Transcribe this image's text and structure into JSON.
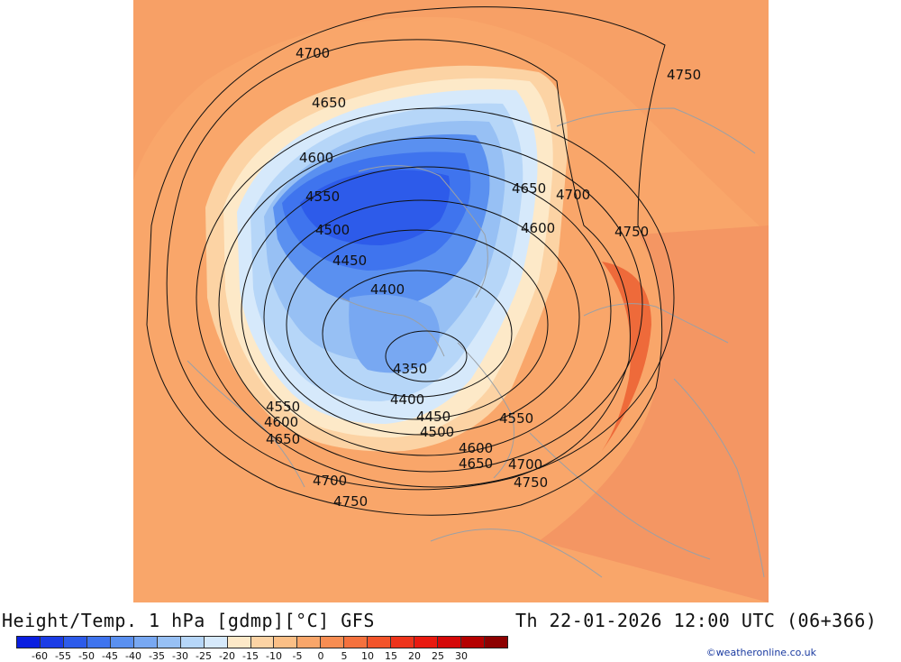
{
  "title": "Height/Temp. 1 hPa [gdmp][°C] GFS",
  "datetime": "Th 22-01-2026 12:00 UTC (06+366)",
  "credit": "©weatheronline.co.uk",
  "colorbar": {
    "colors": [
      "#0a1ee0",
      "#1b3ce6",
      "#2d5bea",
      "#3f74ee",
      "#5a90f0",
      "#78a8f2",
      "#97c0f4",
      "#b6d6f8",
      "#d6e9fb",
      "#fde9c8",
      "#fcd3a4",
      "#fbbf86",
      "#f9a66a",
      "#f78d52",
      "#f4713d",
      "#f2542a",
      "#ee341b",
      "#e91a10",
      "#d50808",
      "#b50000",
      "#8d0000"
    ],
    "ticks": [
      "-60",
      "-55",
      "-50",
      "-45",
      "-40",
      "-35",
      "-30",
      "-25",
      "-20",
      "-15",
      "-10",
      "-5",
      "0",
      "5",
      "10",
      "15",
      "20",
      "25",
      "30"
    ]
  },
  "contour_labels": [
    {
      "text": "4700"
    },
    {
      "text": "4750"
    },
    {
      "text": "4650"
    },
    {
      "text": "4600"
    },
    {
      "text": "4650"
    },
    {
      "text": "4700"
    },
    {
      "text": "4550"
    },
    {
      "text": "4600"
    },
    {
      "text": "4750"
    },
    {
      "text": "4500"
    },
    {
      "text": "4450"
    },
    {
      "text": "4400"
    },
    {
      "text": "4350"
    },
    {
      "text": "4550"
    },
    {
      "text": "4400"
    },
    {
      "text": "4600"
    },
    {
      "text": "4450"
    },
    {
      "text": "4550"
    },
    {
      "text": "4650"
    },
    {
      "text": "4500"
    },
    {
      "text": "4600"
    },
    {
      "text": "4650"
    },
    {
      "text": "4700"
    },
    {
      "text": "4700"
    },
    {
      "text": "4750"
    },
    {
      "text": "4750"
    }
  ]
}
